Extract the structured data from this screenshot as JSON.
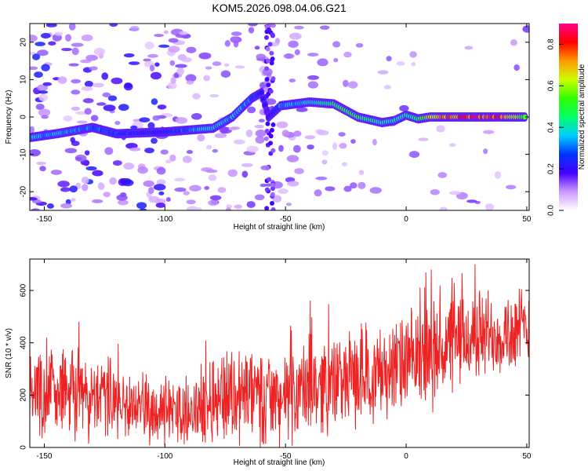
{
  "figure_title": "KOM5.2026.098.04.06.G21",
  "colors": {
    "snr_line": "#ee2222",
    "frame": "#000000",
    "background": "#ffffff"
  },
  "chart_data": [
    {
      "type": "heatmap",
      "name": "spectrogram",
      "xlabel": "Height of straight line (km)",
      "ylabel": "Frequency (Hz)",
      "xlim": [
        -156,
        51
      ],
      "ylim": [
        -25,
        25
      ],
      "xticks": [
        -150,
        -100,
        -50,
        0,
        50
      ],
      "yticks": [
        -20,
        -10,
        0,
        10,
        20
      ],
      "colorbar": {
        "label": "Normalized spectral amplitude",
        "range": [
          0,
          0.9
        ],
        "ticks": [
          "0.0",
          "0.2",
          "0.4",
          "0.6",
          "0.8"
        ]
      },
      "ridge": {
        "description_points": [
          [
            -156,
            -5.5,
            0.4
          ],
          [
            -145,
            -4.5,
            0.38
          ],
          [
            -130,
            -2.8,
            0.35
          ],
          [
            -120,
            -4.5,
            0.3
          ],
          [
            -100,
            -4,
            0.25
          ],
          [
            -90,
            -3.5,
            0.35
          ],
          [
            -80,
            -3,
            0.4
          ],
          [
            -72,
            0,
            0.4
          ],
          [
            -64,
            5,
            0.35
          ],
          [
            -60,
            6.5,
            0.25
          ],
          [
            -57,
            0,
            0.2
          ],
          [
            -52,
            3,
            0.35
          ],
          [
            -40,
            4,
            0.45
          ],
          [
            -30,
            3.5,
            0.5
          ],
          [
            -20,
            0,
            0.55
          ],
          [
            -10,
            -1.5,
            0.45
          ],
          [
            -5,
            -1,
            0.45
          ],
          [
            0,
            0.5,
            0.5
          ],
          [
            5,
            -0.5,
            0.5
          ],
          [
            10,
            0,
            0.7
          ],
          [
            20,
            0,
            0.85
          ],
          [
            30,
            0,
            0.9
          ],
          [
            40,
            0,
            0.85
          ],
          [
            50,
            0,
            0.6
          ]
        ]
      }
    },
    {
      "type": "line",
      "name": "snr",
      "xlabel": "Height of straight line (km)",
      "ylabel": "SNR (10 * v/v)",
      "xlim": [
        -156,
        51
      ],
      "ylim": [
        0,
        720
      ],
      "xticks": [
        -150,
        -100,
        -50,
        0,
        50
      ],
      "yticks": [
        0,
        200,
        400,
        600
      ],
      "envelope": {
        "x": [
          -156,
          -145,
          -130,
          -110,
          -90,
          -75,
          -65,
          -50,
          -40,
          -30,
          -20,
          -10,
          0,
          10,
          20,
          30,
          40,
          51
        ],
        "mean": [
          230,
          220,
          200,
          150,
          130,
          210,
          200,
          180,
          230,
          250,
          270,
          290,
          320,
          350,
          400,
          430,
          440,
          450
        ],
        "amplitude": [
          160,
          170,
          150,
          110,
          110,
          170,
          180,
          150,
          170,
          160,
          160,
          160,
          170,
          180,
          170,
          160,
          150,
          150
        ]
      }
    }
  ]
}
